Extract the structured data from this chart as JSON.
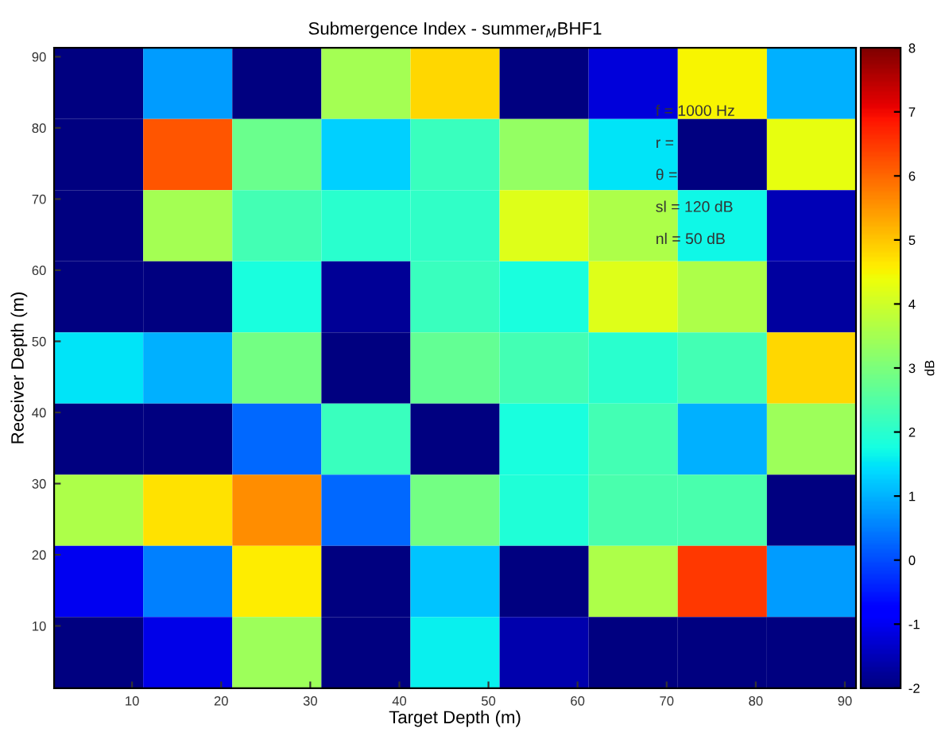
{
  "chart_data": {
    "type": "heatmap",
    "title": "Submergence Index - summer$_{M}$BHF1",
    "xlabel": "Target Depth (m)",
    "ylabel": "Receiver Depth (m)",
    "clabel": "dB",
    "x": [
      6.25,
      16.25,
      26.25,
      36.25,
      46.25,
      56.25,
      66.25,
      76.25,
      86.25
    ],
    "y": [
      86.25,
      76.25,
      66.25,
      56.25,
      46.25,
      36.25,
      26.25,
      16.25,
      6.25
    ],
    "xlim": [
      1.25,
      91.25
    ],
    "ylim": [
      1.25,
      91.25
    ],
    "xticks": [
      10,
      20,
      30,
      40,
      50,
      60,
      70,
      80,
      90
    ],
    "yticks": [
      10,
      20,
      30,
      40,
      50,
      60,
      70,
      80,
      90
    ],
    "clim": [
      -2,
      8
    ],
    "cticks": [
      -2,
      -1,
      0,
      1,
      2,
      3,
      4,
      5,
      6,
      7,
      8
    ],
    "cells": [
      [
        -2,
        0.8,
        -2,
        3.5,
        4.8,
        -2,
        -1.2,
        4.5,
        1.0
      ],
      [
        -2,
        6.2,
        2.8,
        1.3,
        2.2,
        3.3,
        1.5,
        -2,
        4.3
      ],
      [
        -2,
        3.5,
        2.3,
        2.0,
        2.1,
        4.2,
        3.6,
        1.7,
        -1.5
      ],
      [
        -2,
        -2,
        1.8,
        -1.8,
        2.2,
        1.8,
        4.2,
        3.6,
        -1.7
      ],
      [
        1.5,
        1.0,
        2.9,
        -2,
        2.7,
        2.3,
        2.0,
        2.3,
        4.8
      ],
      [
        -2,
        -2,
        0.3,
        2.2,
        -2,
        1.8,
        2.3,
        1.0,
        3.4
      ],
      [
        3.6,
        4.7,
        5.6,
        0.3,
        2.9,
        1.9,
        2.4,
        2.4,
        -2
      ],
      [
        -1.0,
        0.5,
        4.6,
        -2,
        1.2,
        -2,
        3.6,
        6.5,
        0.8
      ],
      [
        -2,
        -1.1,
        3.4,
        -2,
        1.6,
        -1.6,
        -2,
        -2,
        -2
      ]
    ],
    "annotations": [
      "f = 1000 Hz",
      "r =",
      "θ =",
      "sl = 120 dB",
      "nl = 50 dB"
    ],
    "grid": false
  }
}
